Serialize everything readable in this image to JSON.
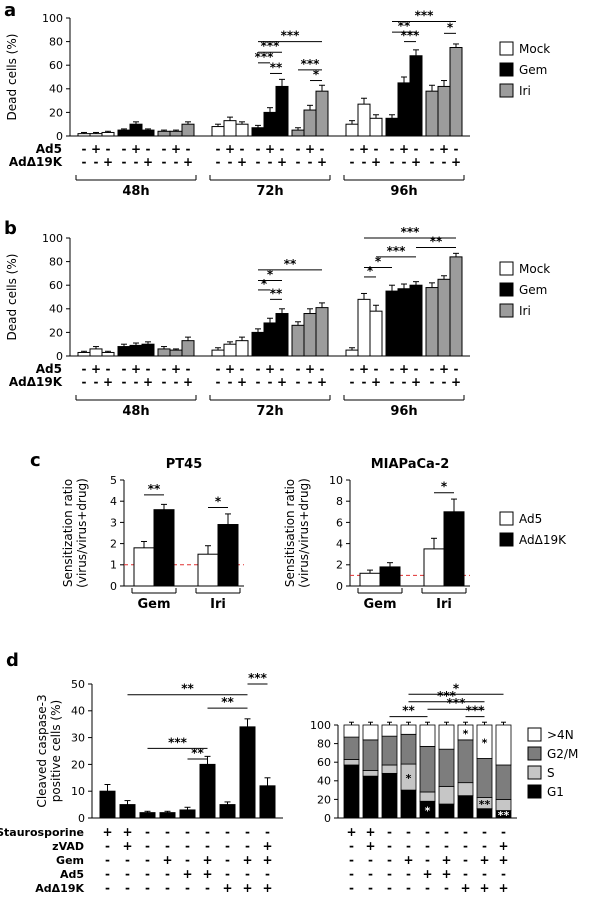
{
  "panels": {
    "a": {
      "letter": "a"
    },
    "b": {
      "letter": "b"
    },
    "c": {
      "letter": "c"
    },
    "d": {
      "letter": "d"
    }
  },
  "chart_data": [
    {
      "id": "a",
      "type": "bar",
      "ylabel": "Dead cells (%)",
      "ylim": [
        0,
        100
      ],
      "yticks": [
        0,
        20,
        40,
        60,
        80,
        100
      ],
      "colors": {
        "w": "#ffffff",
        "b": "#000000",
        "g": "#9c9c9c"
      },
      "legend": [
        {
          "label": "Mock",
          "color": "#ffffff"
        },
        {
          "label": "Gem",
          "color": "#000000"
        },
        {
          "label": "Iri",
          "color": "#9c9c9c"
        }
      ],
      "bars": [
        [
          2,
          1,
          "w"
        ],
        [
          2,
          1,
          "w"
        ],
        [
          3,
          1,
          "w"
        ],
        [
          5,
          1,
          "b"
        ],
        [
          10,
          2,
          "b"
        ],
        [
          5,
          1,
          "b"
        ],
        [
          4,
          1,
          "g"
        ],
        [
          4,
          1,
          "g"
        ],
        [
          10,
          2,
          "g"
        ],
        [
          8,
          2,
          "w"
        ],
        [
          13,
          3,
          "w"
        ],
        [
          10,
          2,
          "w"
        ],
        [
          7,
          2,
          "b"
        ],
        [
          20,
          4,
          "b"
        ],
        [
          42,
          6,
          "b"
        ],
        [
          5,
          2,
          "g"
        ],
        [
          22,
          4,
          "g"
        ],
        [
          38,
          5,
          "g"
        ],
        [
          10,
          3,
          "w"
        ],
        [
          27,
          5,
          "w"
        ],
        [
          15,
          3,
          "w"
        ],
        [
          15,
          3,
          "b"
        ],
        [
          45,
          5,
          "b"
        ],
        [
          68,
          5,
          "b"
        ],
        [
          38,
          5,
          "g"
        ],
        [
          42,
          5,
          "g"
        ],
        [
          75,
          3,
          "g"
        ]
      ],
      "sign_rows": [
        {
          "label": "Ad5",
          "signs": [
            "-",
            "+",
            "-",
            "-",
            "+",
            "-",
            "-",
            "+",
            "-",
            "-",
            "+",
            "-",
            "-",
            "+",
            "-",
            "-",
            "+",
            "-",
            "-",
            "+",
            "-",
            "-",
            "+",
            "-",
            "-",
            "+",
            "-"
          ]
        },
        {
          "label": "AdΔ19K",
          "signs": [
            "-",
            "-",
            "+",
            "-",
            "-",
            "+",
            "-",
            "-",
            "+",
            "-",
            "-",
            "+",
            "-",
            "-",
            "+",
            "-",
            "-",
            "+",
            "-",
            "-",
            "+",
            "-",
            "-",
            "+",
            "-",
            "-",
            "+"
          ]
        }
      ],
      "group_labels": [
        "48h",
        "72h",
        "96h"
      ],
      "sig": [
        {
          "from": 12,
          "to": 17,
          "y": 80,
          "label": "***"
        },
        {
          "from": 12,
          "to": 14,
          "y": 71,
          "label": "***"
        },
        {
          "from": 12,
          "to": 13,
          "y": 62,
          "label": "***"
        },
        {
          "from": 13,
          "to": 14,
          "y": 53,
          "label": "**"
        },
        {
          "from": 15,
          "to": 17,
          "y": 56,
          "label": "***"
        },
        {
          "from": 16,
          "to": 17,
          "y": 47,
          "label": "*"
        },
        {
          "from": 21,
          "to": 26,
          "y": 97,
          "label": "***"
        },
        {
          "from": 21,
          "to": 23,
          "y": 88,
          "label": "**"
        },
        {
          "from": 22,
          "to": 23,
          "y": 80,
          "label": "***"
        },
        {
          "from": 25,
          "to": 26,
          "y": 87,
          "label": "*"
        }
      ]
    },
    {
      "id": "b",
      "type": "bar",
      "ylabel": "Dead cells (%)",
      "ylim": [
        0,
        100
      ],
      "yticks": [
        0,
        20,
        40,
        60,
        80,
        100
      ],
      "colors": {
        "w": "#ffffff",
        "b": "#000000",
        "g": "#9c9c9c"
      },
      "legend": [
        {
          "label": "Mock",
          "color": "#ffffff"
        },
        {
          "label": "Gem",
          "color": "#000000"
        },
        {
          "label": "Iri",
          "color": "#9c9c9c"
        }
      ],
      "bars": [
        [
          3,
          1,
          "w"
        ],
        [
          6,
          2,
          "w"
        ],
        [
          3,
          1,
          "w"
        ],
        [
          8,
          2,
          "b"
        ],
        [
          9,
          2,
          "b"
        ],
        [
          10,
          2,
          "b"
        ],
        [
          6,
          2,
          "g"
        ],
        [
          5,
          1,
          "g"
        ],
        [
          13,
          3,
          "g"
        ],
        [
          5,
          2,
          "w"
        ],
        [
          10,
          2,
          "w"
        ],
        [
          13,
          3,
          "w"
        ],
        [
          20,
          3,
          "b"
        ],
        [
          28,
          4,
          "b"
        ],
        [
          36,
          4,
          "b"
        ],
        [
          26,
          3,
          "g"
        ],
        [
          36,
          4,
          "g"
        ],
        [
          41,
          4,
          "g"
        ],
        [
          5,
          2,
          "w"
        ],
        [
          48,
          5,
          "w"
        ],
        [
          38,
          5,
          "w"
        ],
        [
          55,
          5,
          "b"
        ],
        [
          57,
          4,
          "b"
        ],
        [
          60,
          3,
          "b"
        ],
        [
          58,
          4,
          "g"
        ],
        [
          65,
          3,
          "g"
        ],
        [
          84,
          3,
          "g"
        ]
      ],
      "sign_rows": [
        {
          "label": "Ad5",
          "signs": [
            "-",
            "+",
            "-",
            "-",
            "+",
            "-",
            "-",
            "+",
            "-",
            "-",
            "+",
            "-",
            "-",
            "+",
            "-",
            "-",
            "+",
            "-",
            "-",
            "+",
            "-",
            "-",
            "+",
            "-",
            "-",
            "+",
            "-"
          ]
        },
        {
          "label": "AdΔ19K",
          "signs": [
            "-",
            "-",
            "+",
            "-",
            "-",
            "+",
            "-",
            "-",
            "+",
            "-",
            "-",
            "+",
            "-",
            "-",
            "+",
            "-",
            "-",
            "+",
            "-",
            "-",
            "+",
            "-",
            "-",
            "+",
            "-",
            "-",
            "+"
          ]
        }
      ],
      "group_labels": [
        "48h",
        "72h",
        "96h"
      ],
      "sig": [
        {
          "from": 12,
          "to": 17,
          "y": 73,
          "label": "**"
        },
        {
          "from": 12,
          "to": 14,
          "y": 64,
          "label": "*"
        },
        {
          "from": 12,
          "to": 13,
          "y": 56,
          "label": "*"
        },
        {
          "from": 13,
          "to": 14,
          "y": 48,
          "label": "**"
        },
        {
          "from": 19,
          "to": 26,
          "y": 100,
          "label": "***"
        },
        {
          "from": 23,
          "to": 26,
          "y": 92,
          "label": "**"
        },
        {
          "from": 20,
          "to": 23,
          "y": 84,
          "label": "***"
        },
        {
          "from": 19,
          "to": 21,
          "y": 75,
          "label": "*"
        },
        {
          "from": 19,
          "to": 20,
          "y": 67,
          "label": "*"
        }
      ]
    },
    {
      "id": "c1",
      "type": "bar",
      "title": "PT45",
      "ylabel_lines": [
        "Sensitization ratio",
        "(virus/virus+drug)"
      ],
      "ylim": [
        0,
        5
      ],
      "yticks": [
        0,
        1,
        2,
        3,
        4,
        5
      ],
      "ref_line": 1,
      "ref_color": "#e03131",
      "colors": {
        "w": "#ffffff",
        "b": "#000000"
      },
      "bars": [
        [
          1.8,
          0.3,
          "w"
        ],
        [
          3.6,
          0.25,
          "b"
        ],
        [
          1.5,
          0.4,
          "w"
        ],
        [
          2.9,
          0.5,
          "b"
        ]
      ],
      "group_labels": [
        "Gem",
        "Iri"
      ],
      "sig": [
        {
          "from": 0,
          "to": 1,
          "y": 4.3,
          "label": "**"
        },
        {
          "from": 2,
          "to": 3,
          "y": 3.7,
          "label": "*"
        }
      ]
    },
    {
      "id": "c2",
      "type": "bar",
      "title": "MIAPaCa-2",
      "ylabel_lines": [
        "Sensitisation ratio",
        "(virus/virus+drug)"
      ],
      "ylim": [
        0,
        10
      ],
      "yticks": [
        0,
        2,
        4,
        6,
        8,
        10
      ],
      "ref_line": 1,
      "ref_color": "#e03131",
      "colors": {
        "w": "#ffffff",
        "b": "#000000"
      },
      "legend": [
        {
          "label": "Ad5",
          "color": "#ffffff"
        },
        {
          "label": "AdΔ19K",
          "color": "#000000"
        }
      ],
      "bars": [
        [
          1.2,
          0.3,
          "w"
        ],
        [
          1.8,
          0.4,
          "b"
        ],
        [
          3.5,
          1.0,
          "w"
        ],
        [
          7.0,
          1.2,
          "b"
        ]
      ],
      "group_labels": [
        "Gem",
        "Iri"
      ],
      "sig": [
        {
          "from": 2,
          "to": 3,
          "y": 8.8,
          "label": "*"
        }
      ]
    },
    {
      "id": "d1",
      "type": "bar",
      "ylabel_lines": [
        "Cleaved caspase-3",
        "positive cells (%)"
      ],
      "ylim": [
        0,
        50
      ],
      "yticks": [
        0,
        10,
        20,
        30,
        40,
        50
      ],
      "colors": {
        "b": "#000000"
      },
      "bars": [
        [
          10,
          2.5,
          "b"
        ],
        [
          5,
          1.5,
          "b"
        ],
        [
          2,
          0.5,
          "b"
        ],
        [
          2,
          0.5,
          "b"
        ],
        [
          3,
          1,
          "b"
        ],
        [
          20,
          3,
          "b"
        ],
        [
          5,
          1,
          "b"
        ],
        [
          34,
          3,
          "b"
        ],
        [
          12,
          3,
          "b"
        ]
      ],
      "sign_rows": [
        {
          "label": "Staurosporine",
          "signs": [
            "+",
            "+",
            "-",
            "-",
            "-",
            "-",
            "-",
            "-",
            "-"
          ]
        },
        {
          "label": "zVAD",
          "signs": [
            "-",
            "+",
            "-",
            "-",
            "-",
            "-",
            "-",
            "-",
            "+"
          ]
        },
        {
          "label": "Gem",
          "signs": [
            "-",
            "-",
            "-",
            "+",
            "-",
            "+",
            "-",
            "+",
            "+"
          ]
        },
        {
          "label": "Ad5",
          "signs": [
            "-",
            "-",
            "-",
            "-",
            "+",
            "+",
            "-",
            "-",
            "-"
          ]
        },
        {
          "label": "AdΔ19K",
          "signs": [
            "-",
            "-",
            "-",
            "-",
            "-",
            "-",
            "+",
            "+",
            "+"
          ]
        }
      ],
      "sig": [
        {
          "from": 1,
          "to": 7,
          "y": 46,
          "label": "**"
        },
        {
          "from": 5,
          "to": 7,
          "y": 41,
          "label": "**"
        },
        {
          "from": 7,
          "to": 8,
          "y": 50,
          "label": "***"
        },
        {
          "from": 2,
          "to": 5,
          "y": 26,
          "label": "***"
        },
        {
          "from": 4,
          "to": 5,
          "y": 22,
          "label": "**"
        }
      ]
    },
    {
      "id": "d2",
      "type": "stacked",
      "ylim": [
        0,
        100
      ],
      "yticks": [
        0,
        20,
        40,
        60,
        80,
        100
      ],
      "err": 3,
      "series": [
        {
          "name": "G1",
          "color": "#000000"
        },
        {
          "name": "S",
          "color": "#c6c6c6"
        },
        {
          "name": "G2/M",
          "color": "#7d7d7d"
        },
        {
          "name": ">4N",
          "color": "#ffffff"
        }
      ],
      "legend": [
        {
          "label": ">4N",
          "color": "#ffffff"
        },
        {
          "label": "G2/M",
          "color": "#7d7d7d"
        },
        {
          "label": "S",
          "color": "#c6c6c6"
        },
        {
          "label": "G1",
          "color": "#000000"
        }
      ],
      "bars": [
        [
          57,
          6,
          24,
          13
        ],
        [
          45,
          6,
          33,
          16
        ],
        [
          48,
          9,
          31,
          12
        ],
        [
          30,
          28,
          32,
          10
        ],
        [
          18,
          10,
          49,
          23
        ],
        [
          15,
          19,
          40,
          26
        ],
        [
          24,
          14,
          46,
          16
        ],
        [
          10,
          12,
          42,
          36
        ],
        [
          8,
          12,
          37,
          43
        ]
      ],
      "instars": [
        {
          "bar": 3,
          "series": "S",
          "label": "*"
        },
        {
          "bar": 4,
          "series": "G1",
          "label": "*"
        },
        {
          "bar": 6,
          "series": ">4N",
          "label": "*"
        },
        {
          "bar": 7,
          "series": "S",
          "label": "**"
        },
        {
          "bar": 7,
          "series": ">4N",
          "label": "*"
        },
        {
          "bar": 8,
          "series": "G1",
          "label": "**"
        }
      ],
      "sign_rows": [
        {
          "label": "",
          "signs": [
            "+",
            "+",
            "-",
            "-",
            "-",
            "-",
            "-",
            "-",
            "-"
          ]
        },
        {
          "label": "",
          "signs": [
            "-",
            "+",
            "-",
            "-",
            "-",
            "-",
            "-",
            "-",
            "+"
          ]
        },
        {
          "label": "",
          "signs": [
            "-",
            "-",
            "-",
            "+",
            "-",
            "+",
            "-",
            "+",
            "+"
          ]
        },
        {
          "label": "",
          "signs": [
            "-",
            "-",
            "-",
            "-",
            "+",
            "+",
            "-",
            "-",
            "-"
          ]
        },
        {
          "label": "",
          "signs": [
            "-",
            "-",
            "-",
            "-",
            "-",
            "-",
            "+",
            "+",
            "+"
          ]
        }
      ],
      "sig": [
        {
          "from": 3,
          "to": 8,
          "y": 133,
          "label": "*"
        },
        {
          "from": 3,
          "to": 7,
          "y": 125,
          "label": "***"
        },
        {
          "from": 4,
          "to": 7,
          "y": 117,
          "label": "***"
        },
        {
          "from": 6,
          "to": 7,
          "y": 109,
          "label": "***"
        },
        {
          "from": 2,
          "to": 4,
          "y": 109,
          "label": "**"
        }
      ]
    }
  ]
}
